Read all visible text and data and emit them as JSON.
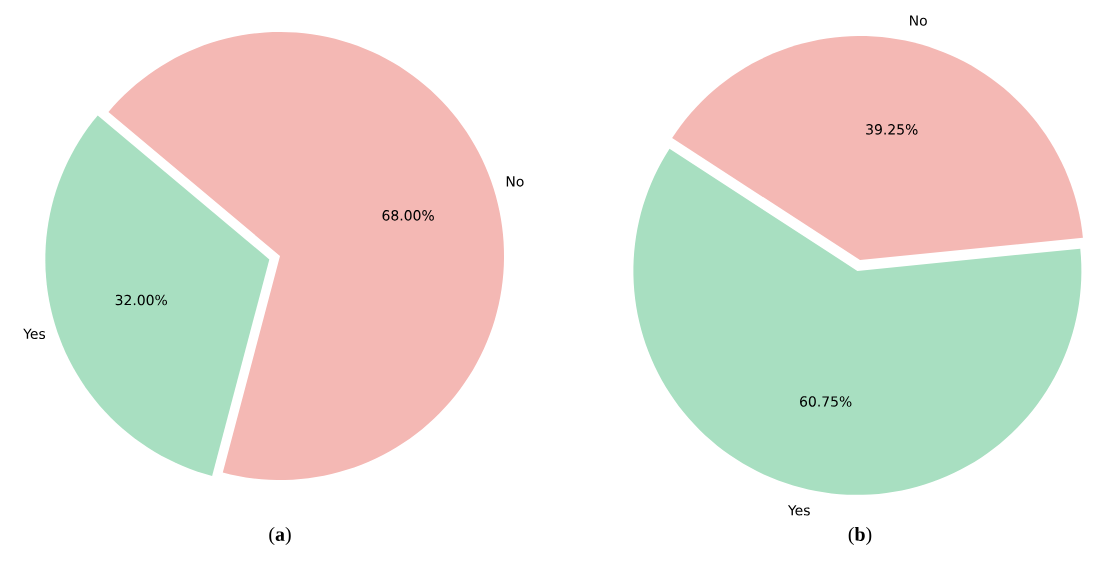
{
  "chart_data": [
    {
      "type": "pie",
      "title": "(**a**)",
      "categories": [
        "Yes",
        "No"
      ],
      "values": [
        32,
        68
      ],
      "colors": [
        "#a8dfc1",
        "#f4b8b4"
      ],
      "value_labels": [
        "32.00%",
        "68.00%"
      ]
    },
    {
      "type": "pie",
      "title": "(**b**)",
      "categories": [
        "Yes",
        "No"
      ],
      "values": [
        60.75,
        39.25
      ],
      "colors": [
        "#a8dfc1",
        "#f4b8b4"
      ],
      "value_labels": [
        "60.75%",
        "39.25%"
      ]
    }
  ]
}
